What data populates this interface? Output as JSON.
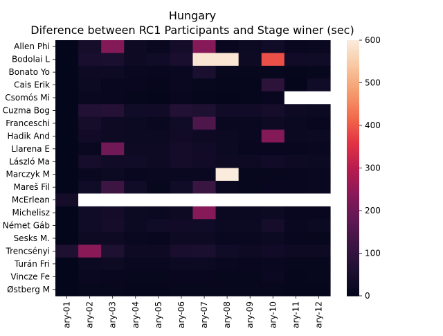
{
  "chart_data": {
    "type": "heatmap",
    "title": "Hungary",
    "subtitle": "Diference between RC1 Participants and Stage winer (sec)",
    "xlabel": "",
    "ylabel": "",
    "rows": [
      "Allen  Phi",
      "Bodolai  L",
      "Bonato  Yo",
      "Cais  Erik",
      "Csomós  Mi",
      "Cuzma  Bog",
      "Franceschi",
      "Hadik  And",
      "Llarena  E",
      "László  Ma",
      "Marczyk  M",
      "Mareš  Fil",
      "McErlean  ",
      "Michelisz ",
      "Német  Gáb",
      "Sesks  M. ",
      "Trencsényi",
      "Turán  Fri",
      "Vincze  Fe",
      "Østberg  M"
    ],
    "columns": [
      "ary-01",
      "ary-02",
      "ary-03",
      "ary-04",
      "ary-05",
      "ary-06",
      "ary-07",
      "ary-08",
      "ary-09",
      "ary-10",
      "ary-11",
      "ary-12"
    ],
    "values": [
      [
        3,
        45,
        230,
        25,
        15,
        40,
        235,
        12,
        20,
        30,
        12,
        15
      ],
      [
        3,
        50,
        55,
        25,
        30,
        50,
        590,
        590,
        25,
        390,
        35,
        30
      ],
      [
        3,
        25,
        25,
        15,
        12,
        15,
        55,
        10,
        10,
        10,
        8,
        10
      ],
      [
        3,
        20,
        12,
        12,
        8,
        15,
        10,
        8,
        8,
        90,
        5,
        30
      ],
      [
        3,
        15,
        12,
        8,
        5,
        12,
        8,
        5,
        8,
        12,
        null,
        null
      ],
      [
        3,
        70,
        75,
        30,
        35,
        70,
        60,
        35,
        35,
        45,
        25,
        20
      ],
      [
        3,
        45,
        25,
        20,
        15,
        30,
        150,
        15,
        15,
        25,
        18,
        12
      ],
      [
        3,
        35,
        25,
        20,
        20,
        35,
        25,
        20,
        15,
        230,
        18,
        20
      ],
      [
        3,
        15,
        205,
        25,
        25,
        40,
        35,
        20,
        12,
        12,
        12,
        15
      ],
      [
        3,
        45,
        35,
        30,
        25,
        40,
        35,
        25,
        25,
        35,
        25,
        20
      ],
      [
        3,
        15,
        20,
        12,
        15,
        15,
        15,
        600,
        10,
        10,
        12,
        15
      ],
      [
        3,
        30,
        120,
        30,
        10,
        30,
        115,
        15,
        10,
        12,
        12,
        15
      ],
      [
        40,
        null,
        null,
        null,
        null,
        null,
        null,
        null,
        null,
        null,
        null,
        null
      ],
      [
        3,
        30,
        40,
        20,
        18,
        25,
        235,
        18,
        18,
        20,
        12,
        12
      ],
      [
        3,
        30,
        45,
        20,
        30,
        35,
        30,
        20,
        20,
        45,
        15,
        20
      ],
      [
        3,
        25,
        25,
        15,
        12,
        25,
        25,
        15,
        15,
        20,
        12,
        10
      ],
      [
        60,
        240,
        60,
        25,
        25,
        50,
        55,
        30,
        25,
        35,
        25,
        25
      ],
      [
        3,
        20,
        25,
        15,
        15,
        20,
        20,
        15,
        12,
        15,
        10,
        10
      ],
      [
        3,
        15,
        12,
        10,
        10,
        12,
        12,
        10,
        10,
        18,
        8,
        10
      ],
      [
        3,
        10,
        10,
        8,
        8,
        10,
        10,
        10,
        10,
        10,
        8,
        8
      ]
    ],
    "colorbar": {
      "min": 0,
      "max": 600,
      "ticks": [
        0,
        100,
        200,
        300,
        400,
        500,
        600
      ]
    },
    "colormap": "rocket",
    "missing_color": "#ffffff"
  }
}
